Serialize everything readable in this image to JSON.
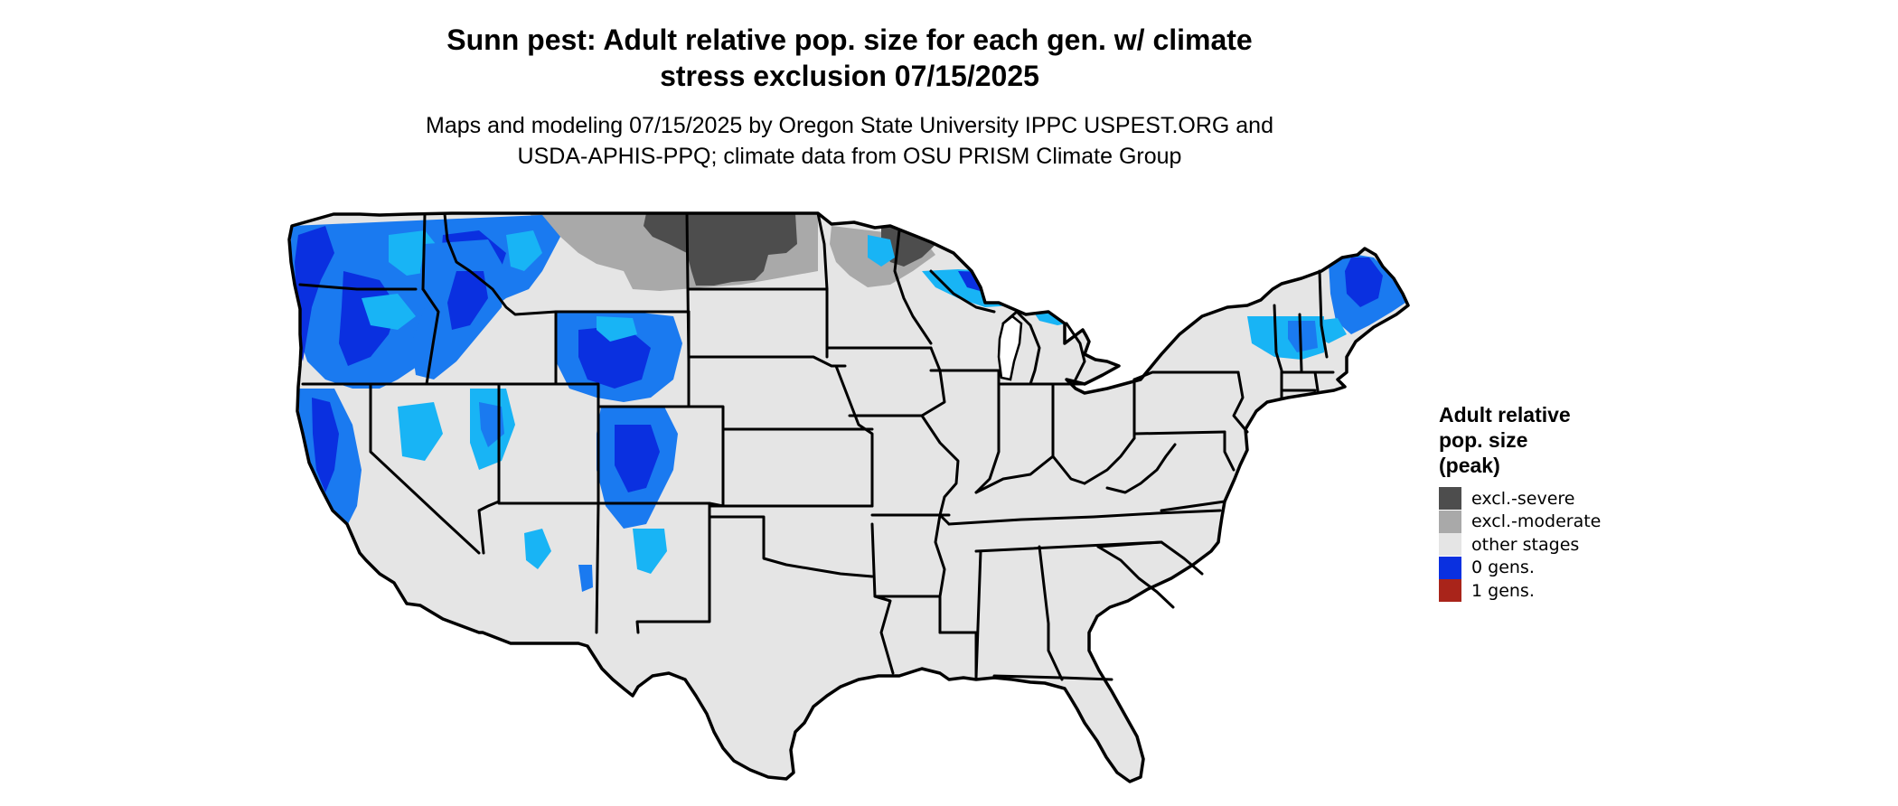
{
  "title": {
    "line1": "Sunn pest: Adult relative pop. size for each gen. w/ climate",
    "line2": "stress exclusion 07/15/2025"
  },
  "subtitle": {
    "line1": "Maps and modeling 07/15/2025 by Oregon State University IPPC USPEST.ORG and",
    "line2": "USDA-APHIS-PPQ; climate data from OSU PRISM Climate Group"
  },
  "legend": {
    "title_line1": "Adult relative",
    "title_line2": "pop. size",
    "title_line3": "(peak)",
    "items": [
      {
        "label": "excl.-severe",
        "color": "#4d4d4d"
      },
      {
        "label": "excl.-moderate",
        "color": "#a9a9a9"
      },
      {
        "label": "other stages",
        "color": "#e5e5e5"
      },
      {
        "label": "0 gens.",
        "color": "#0a30e0"
      },
      {
        "label": "1 gens.",
        "color": "#a9241a"
      }
    ]
  },
  "map": {
    "region": "contiguous-united-states",
    "colors": {
      "background": "#e5e5e5",
      "state_border": "#000000",
      "blue_dark": "#0a30e0",
      "blue_mid": "#1a7af0",
      "blue_light": "#18b4f5",
      "gray_dark": "#4d4d4d",
      "gray_mid": "#a9a9a9"
    }
  }
}
